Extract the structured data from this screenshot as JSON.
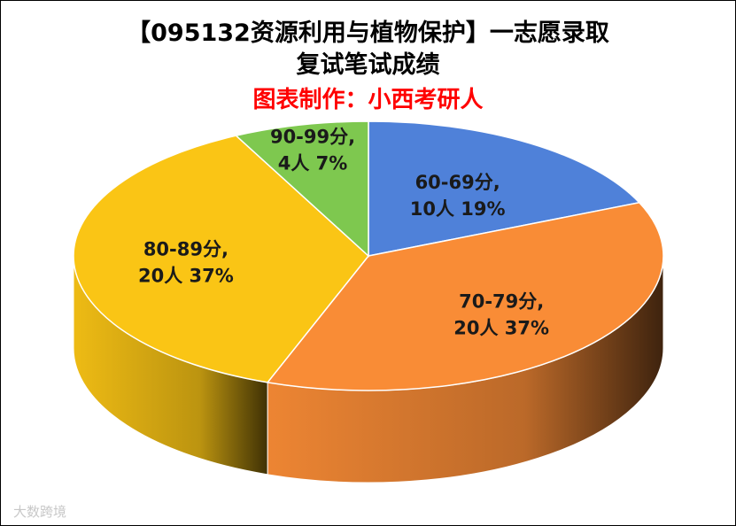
{
  "title_line1": "【095132资源利用与植物保护】一志愿录取",
  "title_line2": "复试笔试成绩",
  "subtitle": "图表制作：小西考研人",
  "watermark": "大数跨境",
  "chart_data": {
    "type": "pie",
    "title": "【095132资源利用与植物保护】一志愿录取 复试笔试成绩",
    "subtitle": "图表制作：小西考研人",
    "slices": [
      {
        "label": "60-69分",
        "count": "10人",
        "percent": "19%",
        "value": 10,
        "color": "#4f81d9"
      },
      {
        "label": "70-79分",
        "count": "20人",
        "percent": "37%",
        "value": 20,
        "color": "#f98c36"
      },
      {
        "label": "80-89分",
        "count": "20人",
        "percent": "37%",
        "value": 20,
        "color": "#fac515"
      },
      {
        "label": "90-99分",
        "count": "4人",
        "percent": "7%",
        "value": 4,
        "color": "#7ec84f"
      }
    ]
  }
}
